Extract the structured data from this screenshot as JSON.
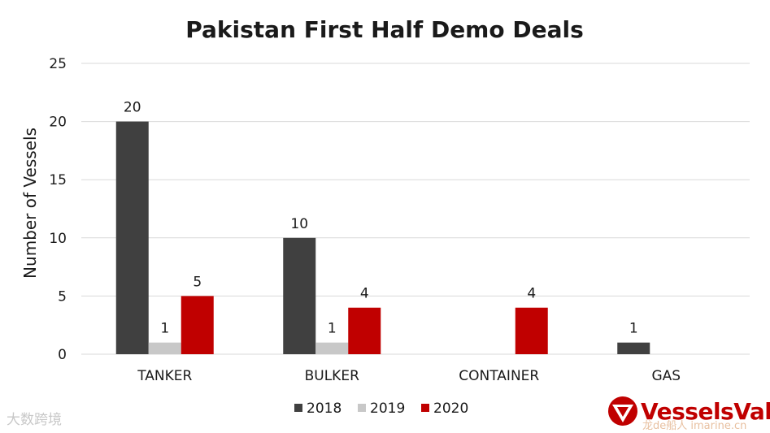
{
  "chart_data": {
    "type": "bar",
    "title": "Pakistan First Half Demo Deals",
    "xlabel": "",
    "ylabel": "Number of Vessels",
    "categories": [
      "TANKER",
      "BULKER",
      "CONTAINER",
      "GAS"
    ],
    "series": [
      {
        "name": "2018",
        "values": [
          20,
          10,
          null,
          1
        ],
        "color": "#404040"
      },
      {
        "name": "2019",
        "values": [
          1,
          1,
          null,
          null
        ],
        "color": "#c8c8c8"
      },
      {
        "name": "2020",
        "values": [
          5,
          4,
          4,
          null
        ],
        "color": "#c00000"
      }
    ],
    "ylim": [
      0,
      25
    ],
    "yticks": [
      0,
      5,
      10,
      15,
      20,
      25
    ],
    "grid": true,
    "legend": "bottom"
  },
  "branding": {
    "logo_text": "VesselsValue",
    "brand_color": "#c00000",
    "logo_icon": "vesselsvalue-triangle-logo"
  },
  "watermarks": {
    "left": "大数跨境",
    "right": "龙de船人 imarine.cn"
  }
}
